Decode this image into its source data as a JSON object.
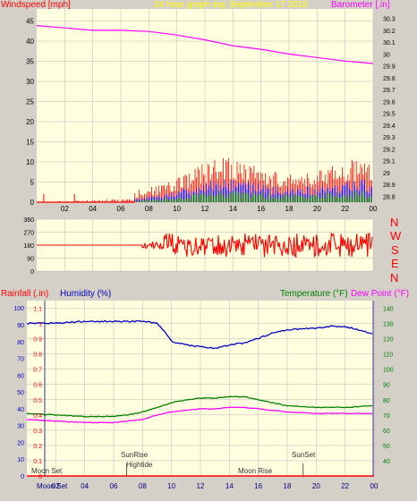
{
  "colors": {
    "background": "#d4d0c8",
    "plot_bg": "#ffffe0",
    "grid": "#b8b8b8",
    "wind_speed": "#ff0000",
    "wind_gust_blue": "#0000ff",
    "wind_green": "#008000",
    "barometer": "#ff00ff",
    "direction": "#ff0000",
    "humidity": "#0000c0",
    "temperature": "#008000",
    "dew_point": "#ff00ff",
    "rainfall": "#ff0000",
    "title_yellow": "#ffff00"
  },
  "top_panel": {
    "left_label": "Windspeed [mph]",
    "title": "24 hour graph day   September 17 2018",
    "right_label": "Barometer [.in]"
  },
  "mid_panel": {
    "compass": [
      "N",
      "W",
      "S",
      "E",
      "N"
    ]
  },
  "bottom_panel": {
    "rainfall_label": "Rainfall (.in)",
    "humidity_label": "Humidity (%)",
    "temperature_label": "Temperature (°F)",
    "dewpoint_label": "Dew Point (°F)",
    "annotations": {
      "moon_set_top": "Moon Set",
      "sunrise": "SunRise",
      "hightide": "Hightide",
      "moon_rise": "Moon Rise",
      "sunset": "SunSet",
      "moon_set_axis": "Moon Set"
    }
  },
  "chart_data": [
    {
      "type": "line",
      "name": "wind_and_pressure",
      "x_ticks": [
        "02",
        "04",
        "06",
        "08",
        "10",
        "12",
        "14",
        "16",
        "18",
        "20",
        "22",
        "00"
      ],
      "y_left_ticks": [
        0,
        5,
        10,
        15,
        20,
        25,
        30,
        35,
        40,
        45
      ],
      "y_left_range": [
        0,
        48
      ],
      "y_right_ticks": [
        "28.8",
        "28.9",
        "29",
        "29.1",
        "29.2",
        "29.3",
        "29.4",
        "29.5",
        "29.6",
        "29.7",
        "29.8",
        "29.9",
        "30",
        "30.1",
        "30.2",
        "30.3"
      ],
      "y_right_range": [
        28.75,
        30.38
      ],
      "barometer": {
        "hours": [
          0,
          2,
          4,
          6,
          8,
          10,
          12,
          14,
          16,
          18,
          20,
          22,
          23,
          24
        ],
        "values": [
          30.24,
          30.22,
          30.2,
          30.2,
          30.19,
          30.16,
          30.12,
          30.07,
          30.04,
          30.0,
          29.97,
          29.94,
          29.93,
          29.92
        ]
      },
      "wind_speed_envelope": {
        "hours": [
          0,
          6.9,
          7,
          9,
          10,
          11,
          12,
          13,
          14,
          15,
          16,
          17,
          18,
          19,
          20,
          21,
          22,
          23,
          24
        ],
        "peak": [
          0,
          1,
          3,
          5,
          6,
          8,
          10,
          11,
          11,
          10,
          9,
          8,
          7,
          7,
          8,
          9,
          10,
          11,
          9
        ],
        "typical": [
          0,
          0,
          1,
          2,
          3,
          4,
          5,
          6,
          6,
          5,
          5,
          4,
          4,
          4,
          4,
          5,
          5,
          6,
          5
        ]
      },
      "wind_early_spikes_hours": [
        0.5,
        2.7
      ],
      "wind_early_spike_value": 2
    },
    {
      "type": "line",
      "name": "wind_direction",
      "x_ticks": [
        "02",
        "04",
        "06",
        "08",
        "10",
        "12",
        "14",
        "16",
        "18",
        "20",
        "22",
        "00"
      ],
      "y_ticks": [
        0,
        90,
        180,
        270,
        360
      ],
      "y_range": [
        0,
        360
      ],
      "steady_value": 180,
      "steady_until_hour": 7.5,
      "variable_from_hour": 7.5,
      "variable_range": [
        90,
        260
      ]
    },
    {
      "type": "line",
      "name": "temperature_humidity",
      "x_ticks": [
        "02",
        "04",
        "06",
        "08",
        "10",
        "12",
        "14",
        "16",
        "18",
        "20",
        "22",
        "00"
      ],
      "y_left_ticks": [
        0,
        0.1,
        0.2,
        0.3,
        0.4,
        0.5,
        0.6,
        0.7,
        0.8,
        0.9,
        1,
        1.1
      ],
      "y_left_range": [
        0,
        1.15
      ],
      "y_humidity_ticks": [
        0,
        10,
        20,
        30,
        40,
        50,
        60,
        70,
        80,
        90,
        100
      ],
      "y_humidity_range": [
        0,
        100
      ],
      "y_right_ticks": [
        40,
        50,
        60,
        70,
        80,
        90,
        100,
        110,
        120,
        130,
        140
      ],
      "y_right_range": [
        30,
        145
      ],
      "humidity": {
        "hours": [
          0,
          2,
          4,
          6,
          8,
          9,
          9.5,
          10,
          11,
          12,
          13,
          14,
          15,
          16,
          17,
          18,
          20,
          21,
          22,
          23,
          24
        ],
        "values": [
          91,
          91,
          92,
          92,
          92,
          91,
          86,
          80,
          78,
          77,
          76,
          78,
          79,
          82,
          85,
          87,
          88,
          89,
          89,
          87,
          84
        ]
      },
      "temperature": {
        "hours": [
          0,
          2,
          4,
          6,
          7,
          8,
          9,
          10,
          11,
          12,
          13,
          14,
          15,
          16,
          17,
          18,
          20,
          22,
          24
        ],
        "values": [
          71,
          70,
          69,
          69,
          70,
          72,
          75,
          78,
          80,
          81,
          81,
          82,
          82,
          80,
          78,
          76,
          75,
          75,
          76
        ]
      },
      "dew_point": {
        "hours": [
          0,
          2,
          4,
          6,
          7,
          8,
          9,
          10,
          11,
          12,
          13,
          14,
          15,
          16,
          17,
          18,
          20,
          22,
          24
        ],
        "values": [
          67,
          66,
          65,
          65,
          66,
          67,
          70,
          72,
          73,
          74,
          74,
          75,
          75,
          74,
          73,
          72,
          71,
          71,
          71
        ]
      },
      "rainfall": {
        "hours": [
          0,
          24
        ],
        "values": [
          0,
          0
        ]
      },
      "event_hours": {
        "sunrise": 6.9,
        "hightide": 7.0,
        "moon_rise": 12.5,
        "sunset": 19.1
      }
    }
  ]
}
